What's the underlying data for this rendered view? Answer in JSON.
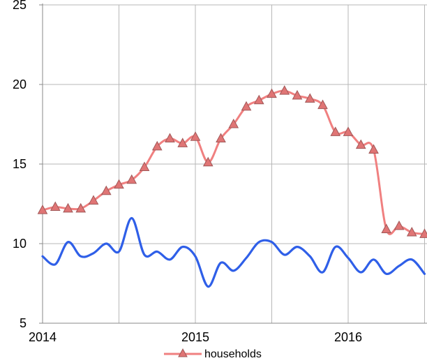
{
  "chart_data": {
    "type": "line",
    "title": "",
    "xlabel": "",
    "ylabel": "",
    "ylim": [
      5,
      25
    ],
    "y_ticks": [
      "5",
      "10",
      "15",
      "20",
      "25"
    ],
    "x_ticks": [
      "2014",
      "2015",
      "2016"
    ],
    "grid": true,
    "legend_position": "bottom",
    "series": [
      {
        "name": "households",
        "color": "#f08080",
        "marker": "triangle",
        "values": [
          [
            "2014-01",
            12.1
          ],
          [
            "2014-02",
            12.3
          ],
          [
            "2014-03",
            12.2
          ],
          [
            "2014-04",
            12.2
          ],
          [
            "2014-05",
            12.7
          ],
          [
            "2014-06",
            13.3
          ],
          [
            "2014-07",
            13.7
          ],
          [
            "2014-08",
            14.0
          ],
          [
            "2014-09",
            14.8
          ],
          [
            "2014-10",
            16.1
          ],
          [
            "2014-11",
            16.6
          ],
          [
            "2014-12",
            16.3
          ],
          [
            "2015-01",
            16.7
          ],
          [
            "2015-02",
            15.1
          ],
          [
            "2015-03",
            16.6
          ],
          [
            "2015-04",
            17.5
          ],
          [
            "2015-05",
            18.6
          ],
          [
            "2015-06",
            19.0
          ],
          [
            "2015-07",
            19.4
          ],
          [
            "2015-08",
            19.6
          ],
          [
            "2015-09",
            19.3
          ],
          [
            "2015-10",
            19.1
          ],
          [
            "2015-11",
            18.7
          ],
          [
            "2015-12",
            17.0
          ],
          [
            "2016-01",
            17.0
          ],
          [
            "2016-02",
            16.2
          ],
          [
            "2016-03",
            15.9
          ],
          [
            "2016-04",
            10.9
          ],
          [
            "2016-05",
            11.1
          ],
          [
            "2016-06",
            10.7
          ],
          [
            "2016-07",
            10.6
          ]
        ]
      },
      {
        "name": "",
        "color": "#2f5fe8",
        "marker": "none",
        "values": [
          [
            "2014-01",
            9.2
          ],
          [
            "2014-02",
            8.7
          ],
          [
            "2014-03",
            10.1
          ],
          [
            "2014-04",
            9.2
          ],
          [
            "2014-05",
            9.4
          ],
          [
            "2014-06",
            10.0
          ],
          [
            "2014-07",
            9.5
          ],
          [
            "2014-08",
            11.6
          ],
          [
            "2014-09",
            9.3
          ],
          [
            "2014-10",
            9.5
          ],
          [
            "2014-11",
            9.0
          ],
          [
            "2014-12",
            9.8
          ],
          [
            "2015-01",
            9.2
          ],
          [
            "2015-02",
            7.3
          ],
          [
            "2015-03",
            8.8
          ],
          [
            "2015-04",
            8.3
          ],
          [
            "2015-05",
            9.1
          ],
          [
            "2015-06",
            10.1
          ],
          [
            "2015-07",
            10.1
          ],
          [
            "2015-08",
            9.3
          ],
          [
            "2015-09",
            9.8
          ],
          [
            "2015-10",
            9.2
          ],
          [
            "2015-11",
            8.2
          ],
          [
            "2015-12",
            9.8
          ],
          [
            "2016-01",
            9.1
          ],
          [
            "2016-02",
            8.2
          ],
          [
            "2016-03",
            9.0
          ],
          [
            "2016-04",
            8.1
          ],
          [
            "2016-05",
            8.6
          ],
          [
            "2016-06",
            9.0
          ],
          [
            "2016-07",
            8.1
          ]
        ]
      }
    ]
  }
}
